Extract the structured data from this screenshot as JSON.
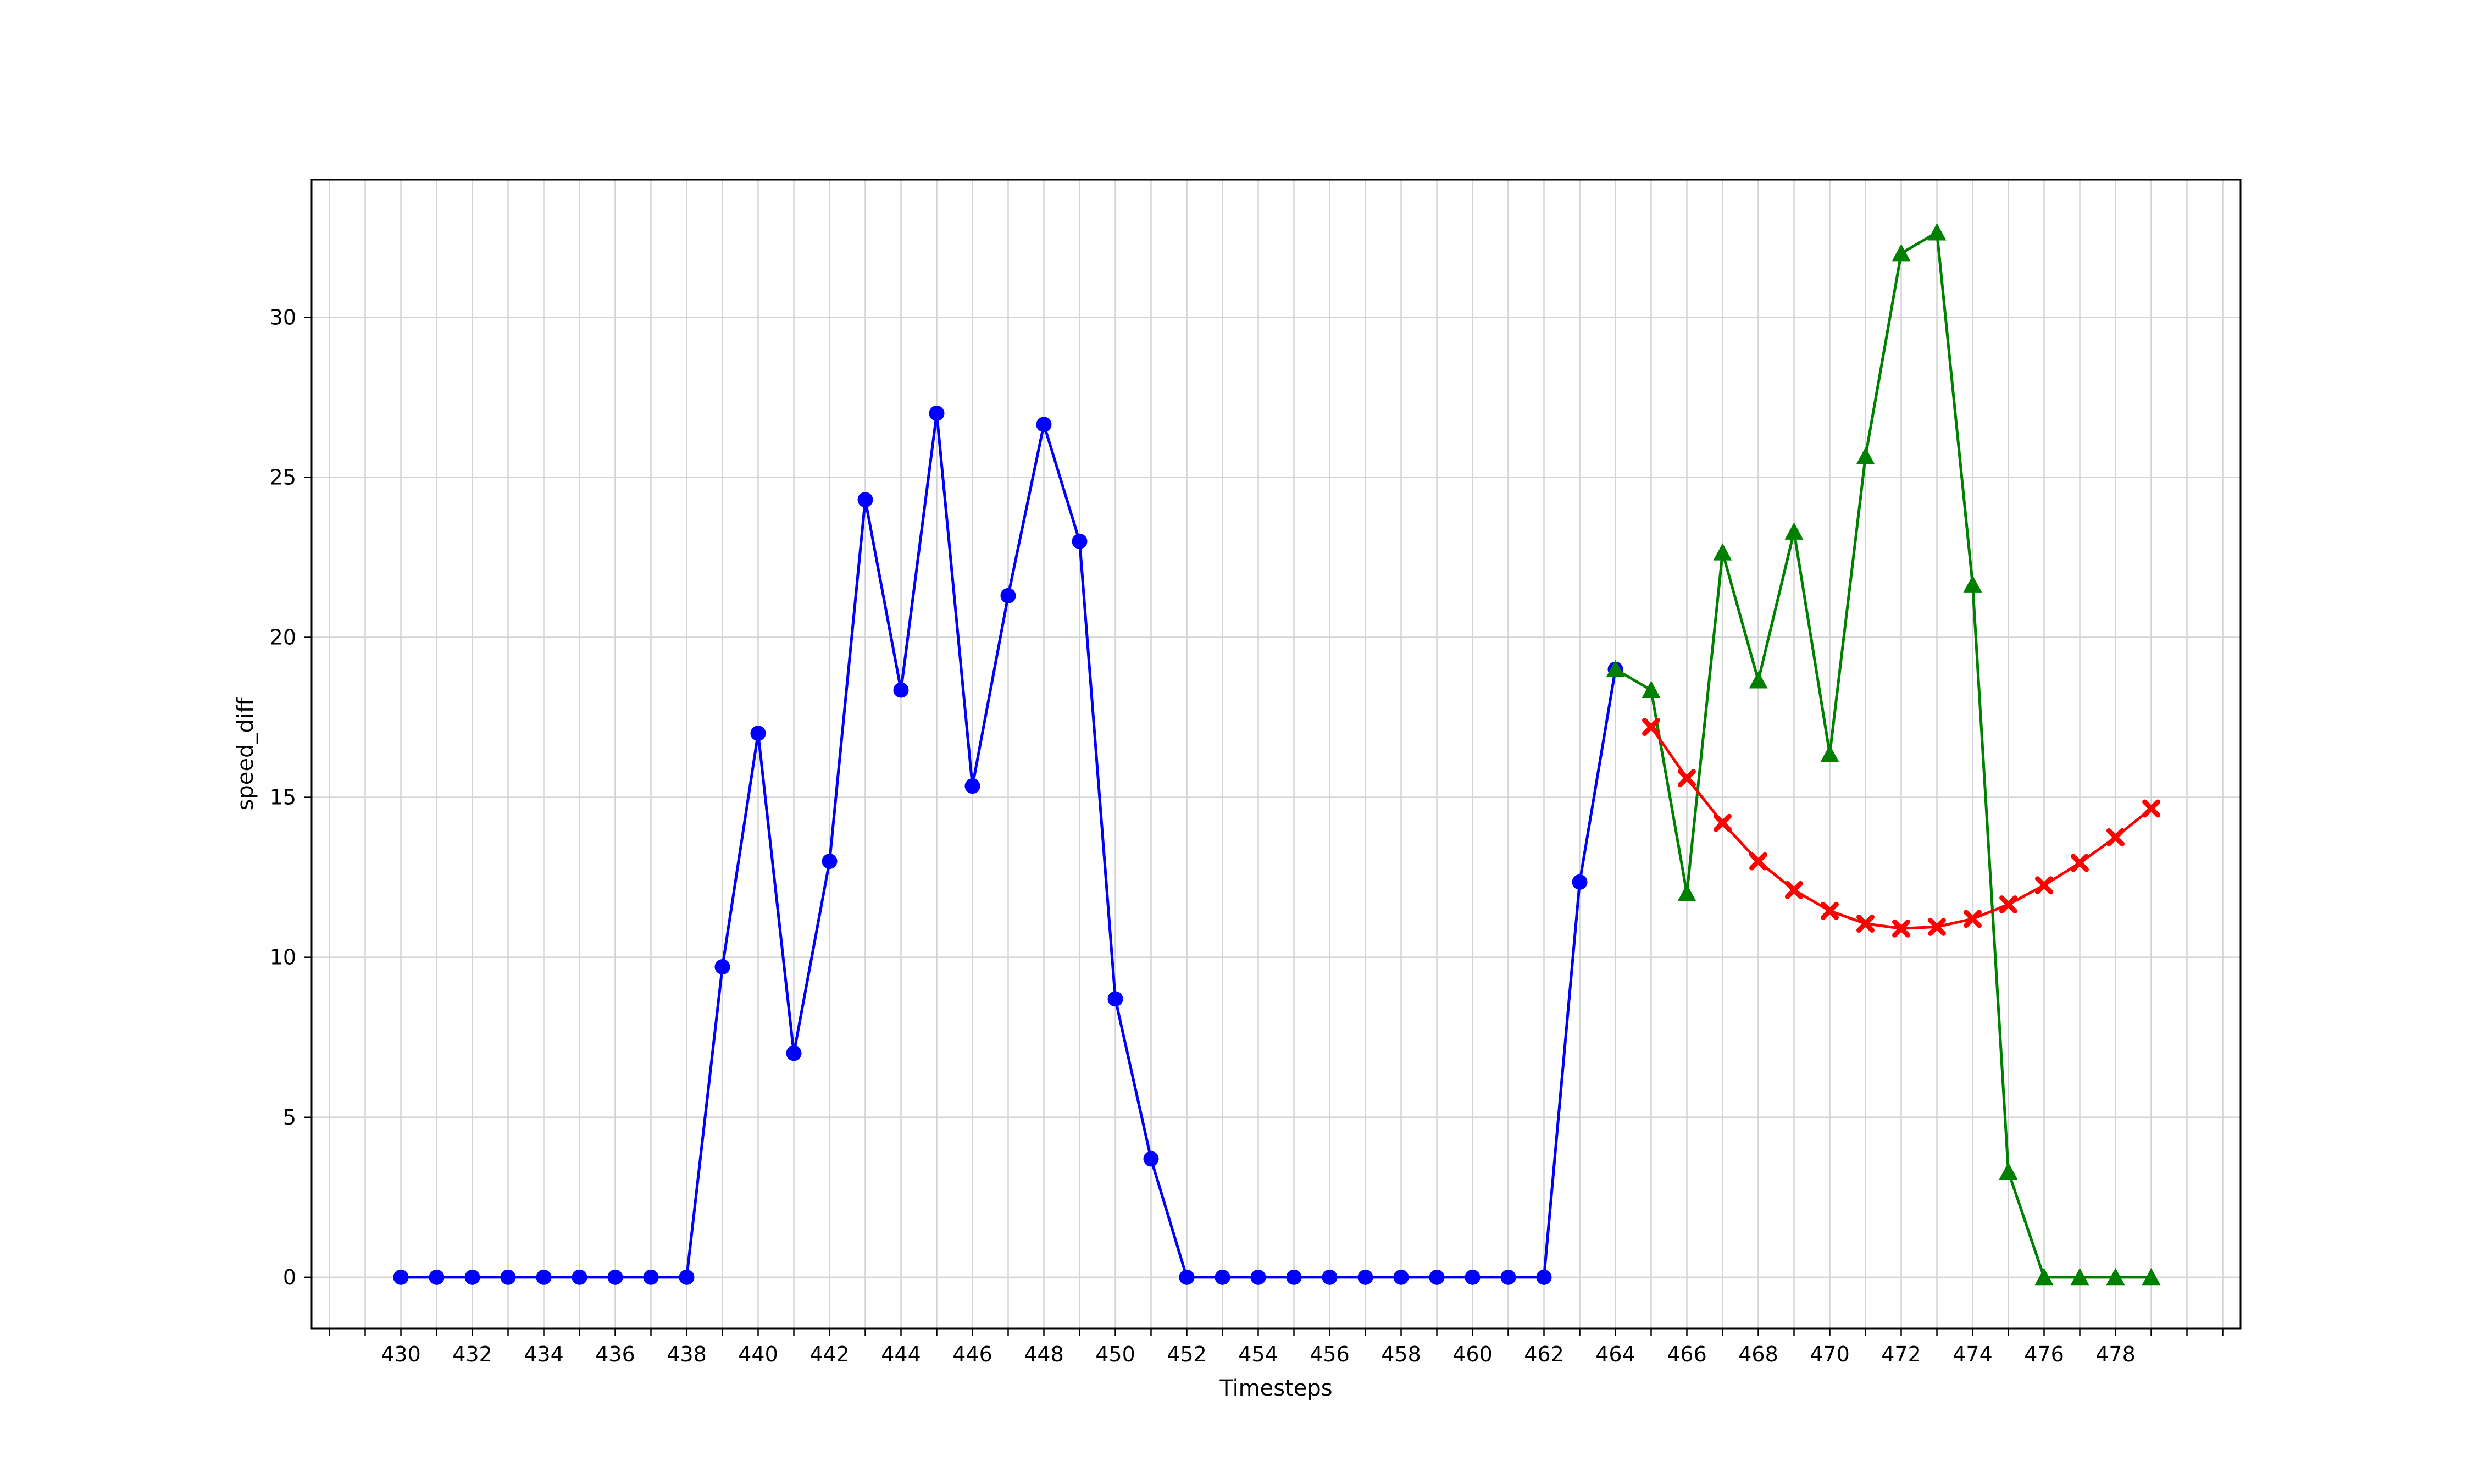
{
  "chart_data": {
    "type": "line",
    "title": "",
    "xlabel": "Timesteps",
    "ylabel": "speed_diff",
    "xlim": [
      427.5,
      481.5
    ],
    "ylim": [
      -1.6,
      34.3
    ],
    "x_ticks": [
      430,
      432,
      434,
      436,
      438,
      440,
      442,
      444,
      446,
      448,
      450,
      452,
      454,
      456,
      458,
      460,
      462,
      464,
      466,
      468,
      470,
      472,
      474,
      476,
      478
    ],
    "y_ticks": [
      0,
      5,
      10,
      15,
      20,
      25,
      30
    ],
    "grid": true,
    "legend": "none",
    "series": [
      {
        "color": "#0000ff",
        "marker": "circle",
        "x": [
          430,
          431,
          432,
          433,
          434,
          435,
          436,
          437,
          438,
          439,
          440,
          441,
          442,
          443,
          444,
          445,
          446,
          447,
          448,
          449,
          450,
          451,
          452,
          453,
          454,
          455,
          456,
          457,
          458,
          459,
          460,
          461,
          462,
          463,
          464
        ],
        "values": [
          0,
          0,
          0,
          0,
          0,
          0,
          0,
          0,
          0,
          9.7,
          17.0,
          7.0,
          13.0,
          24.3,
          18.35,
          27.0,
          15.35,
          21.3,
          26.65,
          23.0,
          8.7,
          3.7,
          0,
          0,
          0,
          0,
          0,
          0,
          0,
          0,
          0,
          0,
          0,
          12.35,
          19.0
        ]
      },
      {
        "color": "#008000",
        "marker": "triangle",
        "x": [
          464,
          465,
          466,
          467,
          468,
          469,
          470,
          471,
          472,
          473,
          474,
          475,
          476,
          477,
          478,
          479
        ],
        "values": [
          19.0,
          18.35,
          12.0,
          22.65,
          18.65,
          23.3,
          16.35,
          25.65,
          32.0,
          32.65,
          21.65,
          3.3,
          0,
          0,
          0,
          0
        ]
      },
      {
        "color": "#ff0000",
        "marker": "x",
        "x": [
          465,
          466,
          467,
          468,
          469,
          470,
          471,
          472,
          473,
          474,
          475,
          476,
          477,
          478,
          479
        ],
        "values": [
          17.2,
          15.6,
          14.2,
          13.0,
          12.1,
          11.45,
          11.05,
          10.9,
          10.95,
          11.2,
          11.65,
          12.25,
          12.95,
          13.75,
          14.65
        ]
      }
    ]
  }
}
